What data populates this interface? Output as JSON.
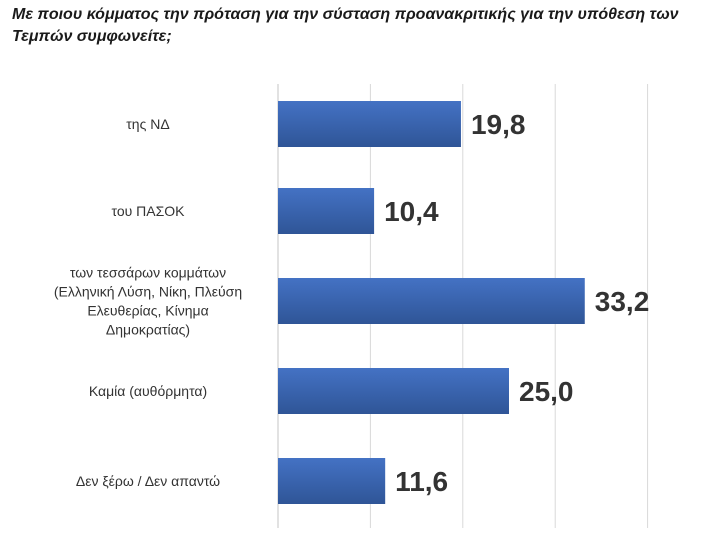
{
  "title": "Με ποιου κόμματος την πρόταση για την σύσταση προανακριτικής για την υπόθεση των Τεμπών συμφωνείτε;",
  "colors": {
    "bar": "#4472C4",
    "bar_dark": "#2F5597",
    "grid": "#D9D9D9",
    "text": "#333333"
  },
  "chart_data": {
    "type": "bar",
    "orientation": "horizontal",
    "title": "Με ποιου κόμματος την πρόταση για την σύσταση προανακριτικής για την υπόθεση των Τεμπών συμφωνείτε;",
    "categories": [
      [
        "της ΝΔ"
      ],
      [
        "του ΠΑΣΟΚ"
      ],
      [
        "των τεσσάρων κομμάτων",
        "(Ελληνική Λύση, Νίκη, Πλεύση",
        "Ελευθερίας, Κίνημα",
        "Δημοκρατίας)"
      ],
      [
        "Καμία (αυθόρμητα)"
      ],
      [
        "Δεν ξέρω / Δεν απαντώ"
      ]
    ],
    "values": [
      19.8,
      10.4,
      33.2,
      25.0,
      11.6
    ],
    "value_labels": [
      "19,8",
      "10,4",
      "33,2",
      "25,0",
      "11,6"
    ],
    "xlim": [
      0,
      40
    ],
    "grid": true,
    "xlabel": "",
    "ylabel": ""
  }
}
